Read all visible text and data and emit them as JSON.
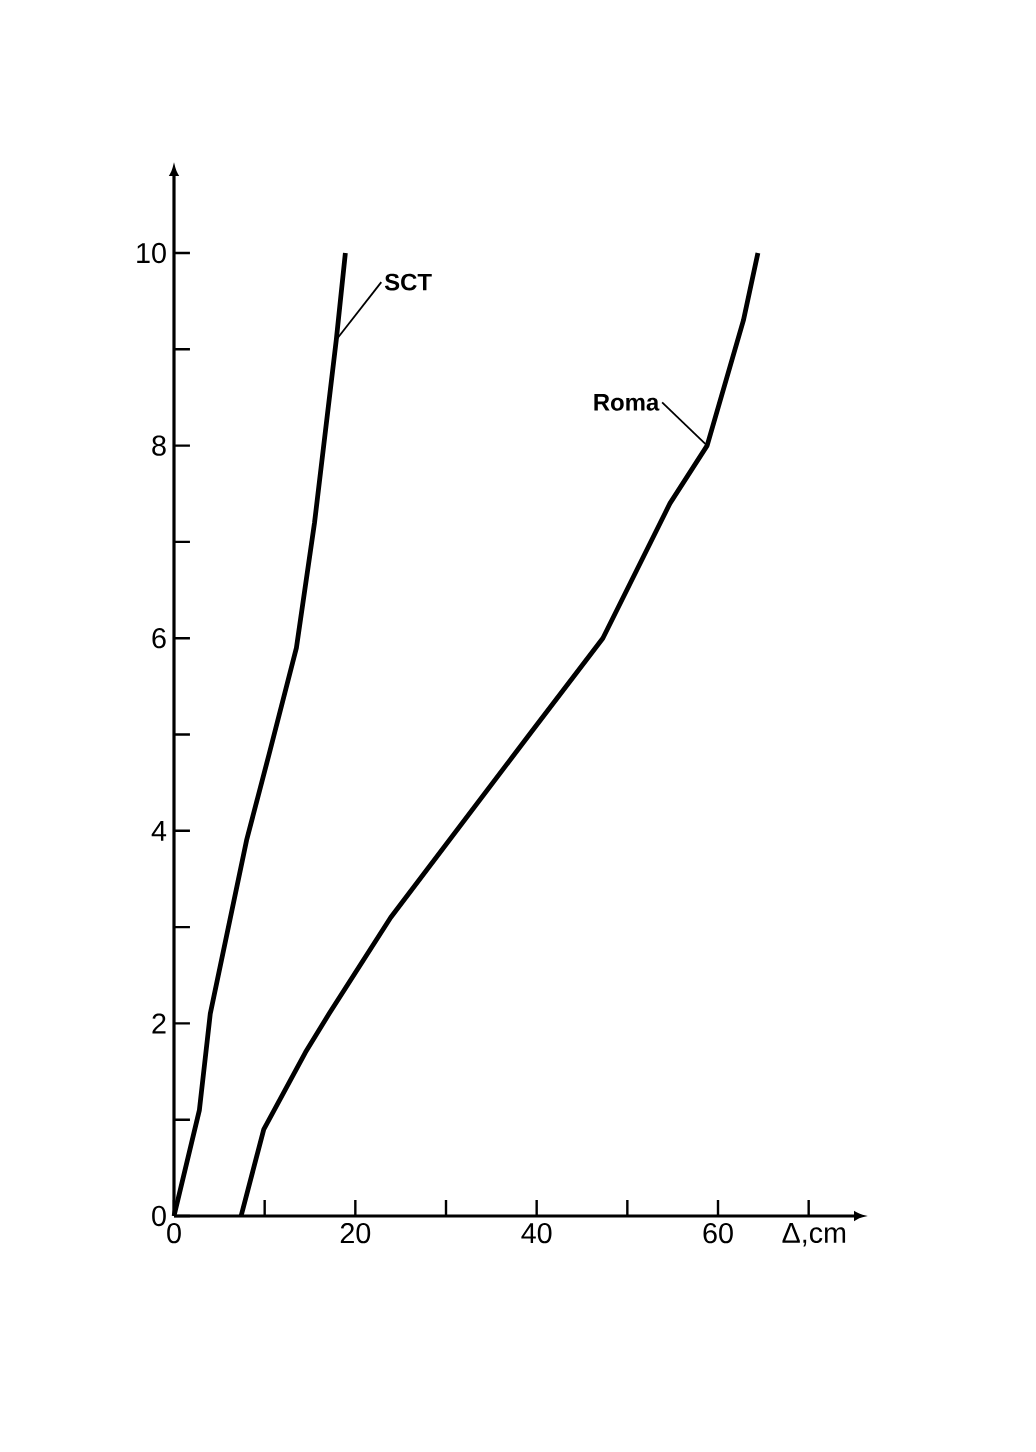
{
  "chart_data": {
    "type": "line",
    "xlabel": "Δ,cm",
    "series": [
      {
        "name": "SCT",
        "color": "#000000",
        "x": [
          0,
          2.8,
          4,
          8,
          10.5,
          13.5,
          15.5,
          17.9,
          18.9
        ],
        "values": [
          0,
          1.1,
          2.1,
          3.9,
          4.8,
          5.9,
          7.2,
          9.1,
          10
        ]
      },
      {
        "name": "Roma",
        "color": "#000000",
        "x": [
          7.4,
          9.9,
          14.5,
          17.1,
          23.9,
          39.2,
          47.3,
          54.7,
          58.8,
          62.8,
          64.4
        ],
        "values": [
          0,
          0.9,
          1.7,
          2.1,
          3.1,
          5,
          6,
          7.4,
          8,
          9.3,
          10
        ]
      }
    ],
    "xlim": [
      0,
      75
    ],
    "ylim": [
      0,
      10.8
    ],
    "xticks": [
      0,
      {
        "value": 10,
        "label": null
      },
      20,
      {
        "value": 30,
        "label": null
      },
      40,
      {
        "value": 50,
        "label": null
      },
      60,
      {
        "value": 70,
        "label": null
      }
    ],
    "yticks": [
      0,
      {
        "value": 1,
        "label": null
      },
      2,
      {
        "value": 3,
        "label": null
      },
      4,
      {
        "value": 5,
        "label": null
      },
      6,
      {
        "value": 7,
        "label": null
      },
      8,
      {
        "value": 9,
        "label": null
      },
      10
    ],
    "grid": false,
    "legend": false,
    "marker": "none",
    "line_style": "solid"
  }
}
